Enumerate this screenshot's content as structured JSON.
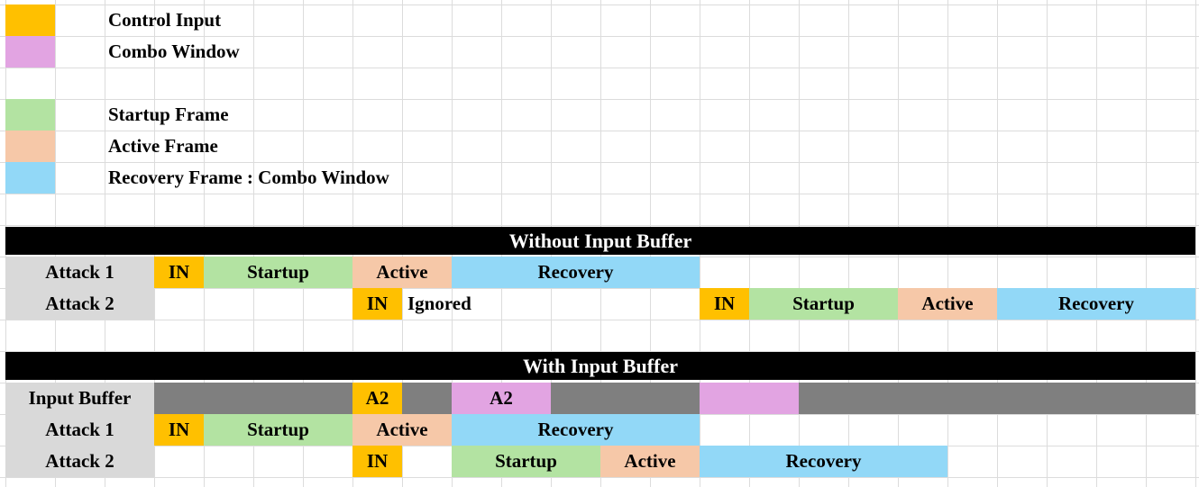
{
  "colors": {
    "orange": "#FFC000",
    "violet": "#E2A4E2",
    "green": "#B3E3A2",
    "peach": "#F6C8A8",
    "blue": "#92D8F7",
    "dark_gray": "#7F7F7F",
    "label_gray": "#D9D9D9",
    "header_black": "#000000",
    "header_text": "#FFFFFF",
    "grid_line": "#DCDCDC",
    "text": "#000000"
  },
  "legend": {
    "items": [
      {
        "label": "Control Input",
        "swatch": "orange",
        "row": 0
      },
      {
        "label": "Combo Window",
        "swatch": "violet",
        "row": 1
      },
      {
        "label": "Startup Frame",
        "swatch": "green",
        "row": 3
      },
      {
        "label": "Active Frame",
        "swatch": "peach",
        "row": 4
      },
      {
        "label": "Recovery Frame : Combo Window",
        "swatch": "blue",
        "row": 5
      }
    ]
  },
  "sections": [
    {
      "title": "Without Input Buffer",
      "rows": [
        {
          "label": "Attack 1",
          "segments": [
            {
              "text": "IN",
              "color": "orange",
              "col": 3,
              "span": 1
            },
            {
              "text": "Startup",
              "color": "green",
              "col": 4,
              "span": 3
            },
            {
              "text": "Active",
              "color": "peach",
              "col": 7,
              "span": 2
            },
            {
              "text": "Recovery",
              "color": "blue",
              "col": 9,
              "span": 5
            }
          ]
        },
        {
          "label": "Attack 2",
          "segments": [
            {
              "text": "IN",
              "color": "orange",
              "col": 7,
              "span": 1
            },
            {
              "text": "Ignored",
              "color": "none",
              "col": 8,
              "span": 3,
              "align": "left"
            },
            {
              "text": "IN",
              "color": "orange",
              "col": 14,
              "span": 1
            },
            {
              "text": "Startup",
              "color": "green",
              "col": 15,
              "span": 3
            },
            {
              "text": "Active",
              "color": "peach",
              "col": 18,
              "span": 2
            },
            {
              "text": "Recovery",
              "color": "blue",
              "col": 20,
              "span": 4
            }
          ]
        }
      ]
    },
    {
      "title": "With Input Buffer",
      "rows": [
        {
          "label": "Input Buffer",
          "segments": [
            {
              "text": "",
              "color": "dark_gray",
              "col": 3,
              "span": 4
            },
            {
              "text": "A2",
              "color": "orange",
              "col": 7,
              "span": 1
            },
            {
              "text": "",
              "color": "dark_gray",
              "col": 8,
              "span": 1
            },
            {
              "text": "A2",
              "color": "violet",
              "col": 9,
              "span": 2,
              "text_in_first_cell": true
            },
            {
              "text": "",
              "color": "dark_gray",
              "col": 11,
              "span": 3
            },
            {
              "text": "",
              "color": "violet",
              "col": 14,
              "span": 2
            },
            {
              "text": "",
              "color": "dark_gray",
              "col": 16,
              "span": 8
            }
          ]
        },
        {
          "label": "Attack 1",
          "segments": [
            {
              "text": "IN",
              "color": "orange",
              "col": 3,
              "span": 1
            },
            {
              "text": "Startup",
              "color": "green",
              "col": 4,
              "span": 3
            },
            {
              "text": "Active",
              "color": "peach",
              "col": 7,
              "span": 2
            },
            {
              "text": "Recovery",
              "color": "blue",
              "col": 9,
              "span": 5
            }
          ]
        },
        {
          "label": "Attack 2",
          "segments": [
            {
              "text": "IN",
              "color": "orange",
              "col": 7,
              "span": 1
            },
            {
              "text": "Startup",
              "color": "green",
              "col": 9,
              "span": 3
            },
            {
              "text": "Active",
              "color": "peach",
              "col": 12,
              "span": 2
            },
            {
              "text": "Recovery",
              "color": "blue",
              "col": 14,
              "span": 5
            }
          ]
        }
      ]
    }
  ]
}
